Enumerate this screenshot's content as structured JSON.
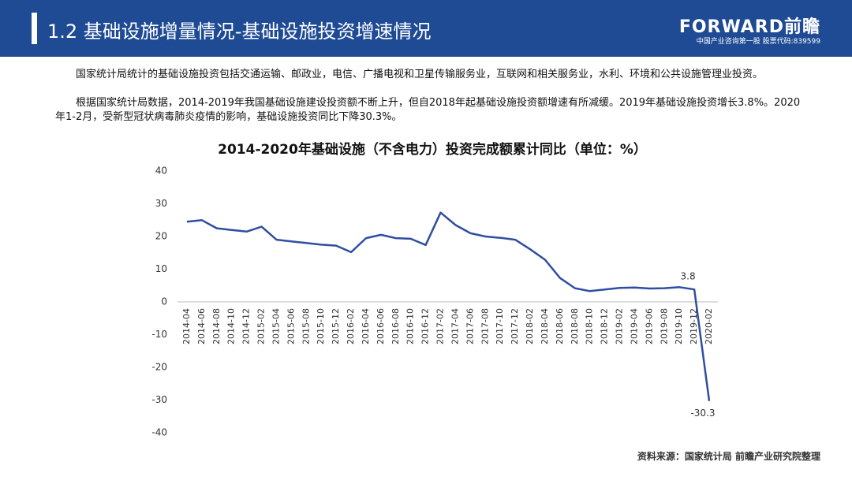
{
  "header": {
    "title": "1.2 基础设施增量情况-基础设施投资增速情况",
    "logo": "FORWARD前瞻",
    "logo_sub": "中国产业咨询第一股 股票代码:839599"
  },
  "paragraphs": [
    "国家统计局统计的基础设施投资包括交通运输、邮政业，电信、广播电视和卫星传输服务业，互联网和相关服务业，水利、环境和公共设施管理业投资。",
    "根据国家统计局数据，2014-2019年我国基础设施建设投资额不断上升，但自2018年起基础设施投资额增速有所减缓。2019年基础设施投资增长3.8%。2020年1-2月，受新型冠状病毒肺炎疫情的影响，基础设施投资同比下降30.3%。"
  ],
  "chart_data": {
    "type": "line",
    "title": "2014-2020年基础设施（不含电力）投资完成额累计同比（单位：%）",
    "categories": [
      "2014-04",
      "2014-06",
      "2014-08",
      "2014-10",
      "2014-12",
      "2015-02",
      "2015-04",
      "2015-06",
      "2015-08",
      "2015-10",
      "2015-12",
      "2016-02",
      "2016-04",
      "2016-06",
      "2016-08",
      "2016-10",
      "2016-12",
      "2017-02",
      "2017-04",
      "2017-06",
      "2017-08",
      "2017-10",
      "2017-12",
      "2018-02",
      "2018-04",
      "2018-06",
      "2018-08",
      "2018-10",
      "2018-12",
      "2019-02",
      "2019-04",
      "2019-06",
      "2019-08",
      "2019-10",
      "2019-12",
      "2020-02"
    ],
    "values": [
      24.5,
      25,
      22.5,
      22,
      21.5,
      23,
      19,
      18.5,
      18,
      17.5,
      17.2,
      15.2,
      19.5,
      20.5,
      19.5,
      19.3,
      17.4,
      27.3,
      23.5,
      21,
      20,
      19.6,
      19,
      16.1,
      12.9,
      7.3,
      4.2,
      3.3,
      3.8,
      4.3,
      4.4,
      4.1,
      4.2,
      4.5,
      3.8,
      -30.3
    ],
    "value_labels": [
      null,
      null,
      null,
      null,
      null,
      null,
      null,
      null,
      null,
      null,
      null,
      null,
      null,
      null,
      null,
      null,
      null,
      null,
      null,
      null,
      null,
      null,
      null,
      null,
      null,
      null,
      null,
      null,
      null,
      null,
      null,
      null,
      null,
      null,
      "3.8",
      "-30.3"
    ],
    "color": "#2f4ea1",
    "ylim": [
      -40,
      40
    ],
    "yticks": [
      -40,
      -30,
      -20,
      -10,
      0,
      10,
      20,
      30,
      40
    ],
    "grid": false
  },
  "source": "资料来源：国家统计局 前瞻产业研究院整理"
}
